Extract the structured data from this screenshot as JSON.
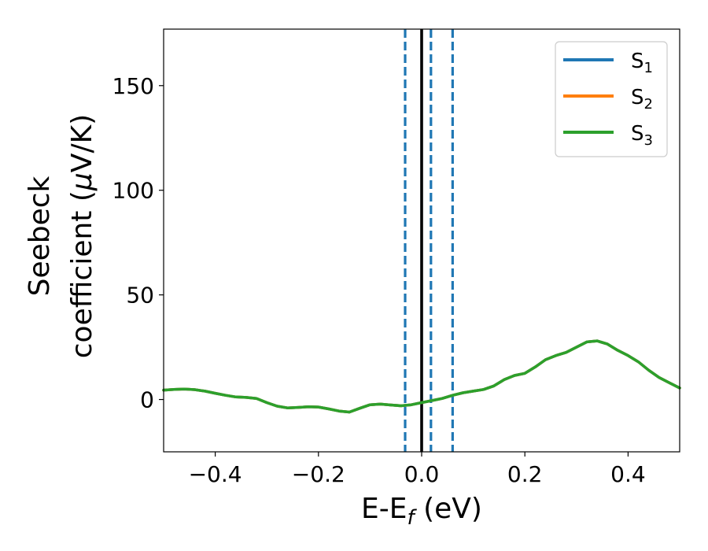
{
  "chart_data": {
    "type": "line",
    "xlabel": "E-E",
    "xlabel_sub": "f",
    "xlabel_unit": " (eV)",
    "ylabel_line1": "Seebeck",
    "ylabel_line2": "coefficient  (",
    "ylabel_mu": "μ",
    "ylabel_tail": "V/K)",
    "xlim": [
      -0.5,
      0.5
    ],
    "ylim": [
      -25,
      177
    ],
    "x_ticks": [
      -0.4,
      -0.2,
      0.0,
      0.2,
      0.4
    ],
    "x_tick_labels": [
      "−0.4",
      "−0.2",
      "0.0",
      "0.2",
      "0.4"
    ],
    "y_ticks": [
      0,
      50,
      100,
      150
    ],
    "y_tick_labels": [
      "0",
      "50",
      "100",
      "150"
    ],
    "grid": false,
    "legend_position": "top-right",
    "legend": [
      {
        "name": "S",
        "sub": "1",
        "color": "#1f77b4"
      },
      {
        "name": "S",
        "sub": "2",
        "color": "#ff7f0e"
      },
      {
        "name": "S",
        "sub": "3",
        "color": "#2ca02c"
      }
    ],
    "series_x": [
      -0.5,
      -0.48,
      -0.46,
      -0.44,
      -0.42,
      -0.4,
      -0.38,
      -0.36,
      -0.34,
      -0.32,
      -0.3,
      -0.28,
      -0.26,
      -0.24,
      -0.22,
      -0.2,
      -0.18,
      -0.16,
      -0.14,
      -0.12,
      -0.1,
      -0.08,
      -0.06,
      -0.04,
      -0.02,
      0.0,
      0.02,
      0.04,
      0.06,
      0.08,
      0.1,
      0.12,
      0.14,
      0.16,
      0.18,
      0.2,
      0.22,
      0.24,
      0.26,
      0.28,
      0.3,
      0.32,
      0.34,
      0.36,
      0.38,
      0.4,
      0.42,
      0.44,
      0.46,
      0.48,
      0.5
    ],
    "series": [
      {
        "name": "S1",
        "color": "#1f77b4",
        "values": [
          4.5,
          4.8,
          5.0,
          4.7,
          4.0,
          3.0,
          2.0,
          1.2,
          1.0,
          0.5,
          -1.5,
          -3.2,
          -4.0,
          -3.8,
          -3.5,
          -3.6,
          -4.5,
          -5.5,
          -6.0,
          -4.2,
          -2.5,
          -2.2,
          -2.6,
          -3.0,
          -2.5,
          -1.5,
          -0.5,
          0.5,
          2.0,
          3.2,
          4.0,
          4.8,
          6.5,
          9.5,
          11.5,
          12.5,
          15.5,
          19.0,
          21.0,
          22.5,
          25.0,
          27.5,
          28.0,
          26.5,
          23.5,
          21.0,
          18.0,
          14.0,
          10.5,
          8.0,
          5.5
        ]
      },
      {
        "name": "S2",
        "color": "#ff7f0e",
        "values": [
          4.5,
          4.8,
          5.0,
          4.7,
          4.0,
          3.0,
          2.0,
          1.2,
          1.0,
          0.5,
          -1.5,
          -3.2,
          -4.0,
          -3.8,
          -3.5,
          -3.6,
          -4.5,
          -5.5,
          -6.0,
          -4.2,
          -2.5,
          -2.2,
          -2.6,
          -3.0,
          -2.5,
          -1.5,
          -0.5,
          0.5,
          2.0,
          3.2,
          4.0,
          4.8,
          6.5,
          9.5,
          11.5,
          12.5,
          15.5,
          19.0,
          21.0,
          22.5,
          25.0,
          27.5,
          28.0,
          26.5,
          23.5,
          21.0,
          18.0,
          14.0,
          10.5,
          8.0,
          5.5
        ]
      },
      {
        "name": "S3",
        "color": "#2ca02c",
        "values": [
          4.5,
          4.8,
          5.0,
          4.7,
          4.0,
          3.0,
          2.0,
          1.2,
          1.0,
          0.5,
          -1.5,
          -3.2,
          -4.0,
          -3.8,
          -3.5,
          -3.6,
          -4.5,
          -5.5,
          -6.0,
          -4.2,
          -2.5,
          -2.2,
          -2.6,
          -3.0,
          -2.5,
          -1.5,
          -0.5,
          0.5,
          2.0,
          3.2,
          4.0,
          4.8,
          6.5,
          9.5,
          11.5,
          12.5,
          15.5,
          19.0,
          21.0,
          22.5,
          25.0,
          27.5,
          28.0,
          26.5,
          23.5,
          21.0,
          18.0,
          14.0,
          10.5,
          8.0,
          5.5
        ]
      }
    ],
    "vlines": [
      {
        "x": -0.032,
        "style": "dashed",
        "color": "#1f77b4"
      },
      {
        "x": 0.018,
        "style": "dashed",
        "color": "#1f77b4"
      },
      {
        "x": 0.06,
        "style": "dashed",
        "color": "#1f77b4"
      },
      {
        "x": 0.0,
        "style": "solid",
        "color": "#000000"
      }
    ]
  }
}
